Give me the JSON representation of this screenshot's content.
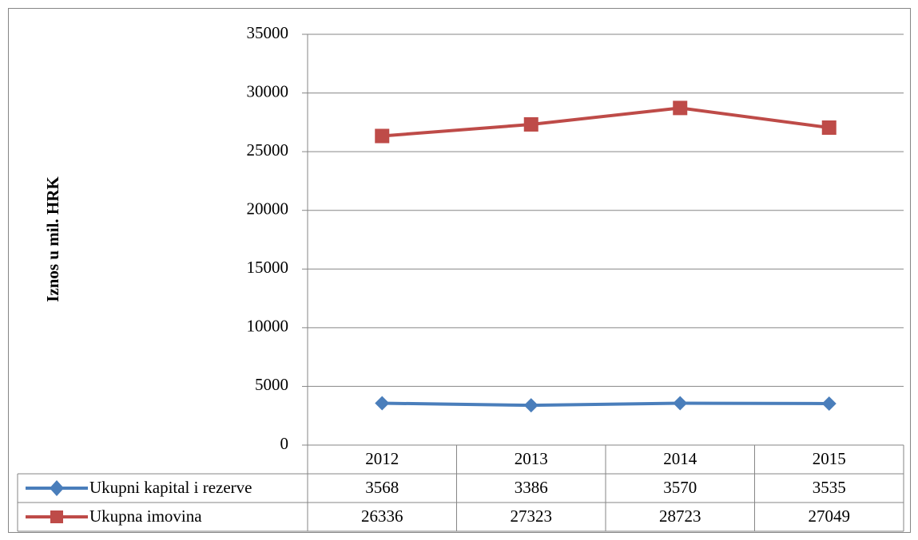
{
  "chart_data": {
    "type": "line",
    "title": "",
    "xlabel": "",
    "ylabel": "Iznos u mil. HRK",
    "categories": [
      "2012",
      "2013",
      "2014",
      "2015"
    ],
    "ylim": [
      0,
      35000
    ],
    "yticks": [
      "0",
      "5000",
      "10000",
      "15000",
      "20000",
      "25000",
      "30000",
      "35000"
    ],
    "grid": true,
    "legend": "data-table",
    "series": [
      {
        "name": "Ukupni kapital i rezerve",
        "values": [
          3568,
          3386,
          3570,
          3535
        ],
        "labels": [
          "3568",
          "3386",
          "3570",
          "3535"
        ],
        "color": "#4A7EBB",
        "marker": "diamond"
      },
      {
        "name": "Ukupna imovina",
        "values": [
          26336,
          27323,
          28723,
          27049
        ],
        "labels": [
          "26336",
          "27323",
          "28723",
          "27049"
        ],
        "color": "#BE4B48",
        "marker": "square"
      }
    ]
  }
}
